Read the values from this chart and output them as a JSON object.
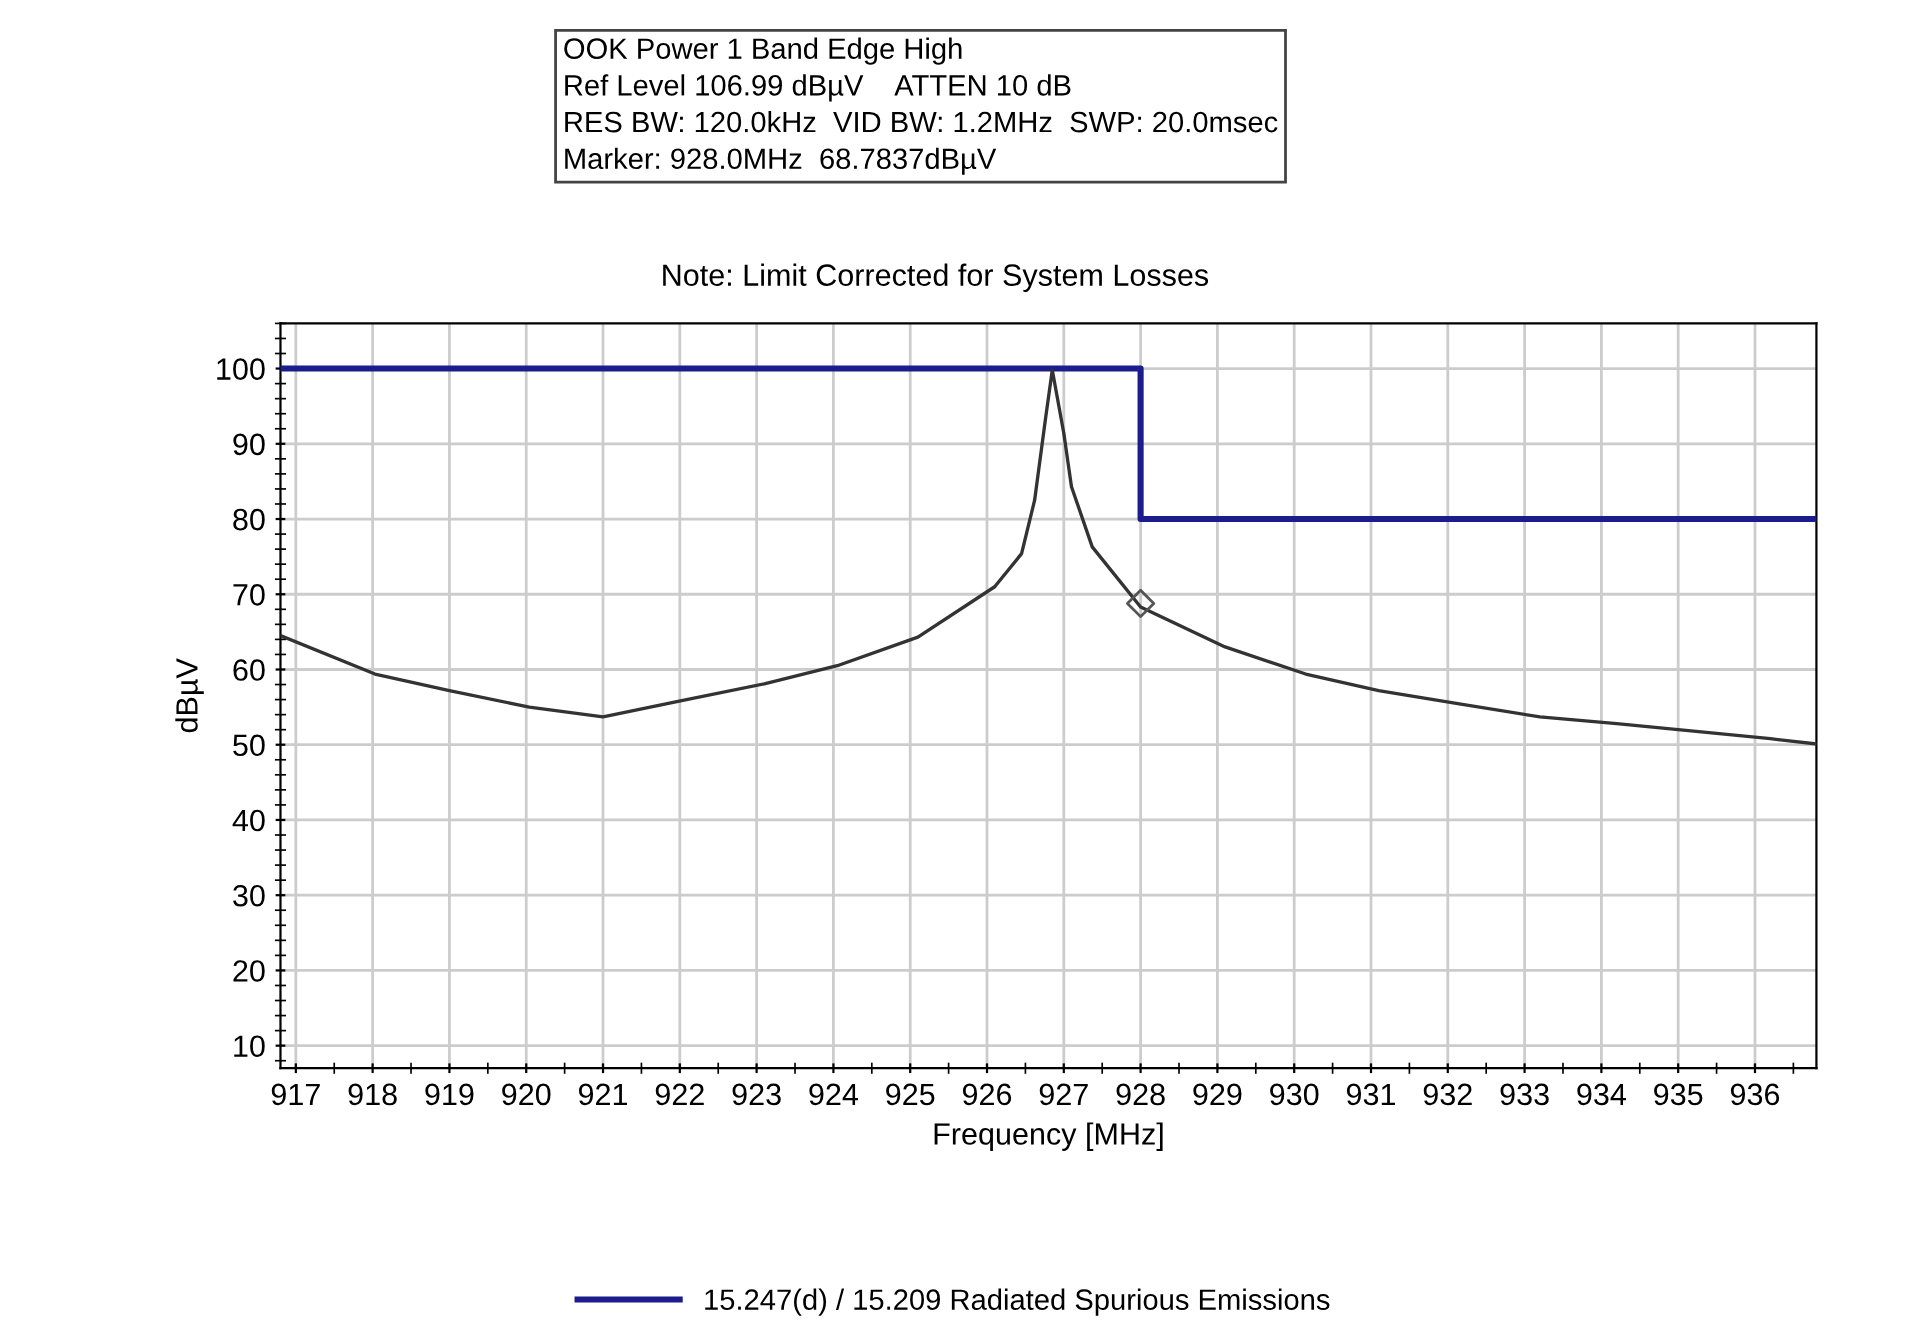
{
  "chart_data": {
    "type": "line",
    "title": "OOK Power 1 Band Edge High",
    "annotations": [
      "Ref Level 106.99 dBµV    ATTEN 10 dB",
      "RES BW: 120.0kHz  VID BW: 1.2MHz  SWP: 20.0msec",
      "Marker: 928.0MHz  68.7837dBµV"
    ],
    "subtitle": "Note: Limit Corrected for System Losses",
    "xlabel": "Frequency [MHz]",
    "ylabel": "dBµV",
    "xlim": [
      916.8,
      936.8
    ],
    "ylim": [
      7,
      106
    ],
    "xticks": [
      917,
      918,
      919,
      920,
      921,
      922,
      923,
      924,
      925,
      926,
      927,
      928,
      929,
      930,
      931,
      932,
      933,
      934,
      935,
      936
    ],
    "yticks": [
      10,
      20,
      30,
      40,
      50,
      60,
      70,
      80,
      90,
      100
    ],
    "grid": true,
    "legend": "bottom",
    "series": [
      {
        "name": "15.247(d) / 15.209 Radiated Spurious Emissions",
        "color": "#1c1c8c",
        "x": [
          916.8,
          928.0,
          928.0,
          936.8
        ],
        "values": [
          100,
          100,
          80,
          80
        ],
        "marker": "none"
      },
      {
        "color": "#333333",
        "marker": "none",
        "x": [
          916.8,
          918.03,
          919.0,
          920.04,
          921.0,
          922.04,
          923.1,
          924.05,
          925.1,
          926.1,
          926.45,
          926.62,
          926.76,
          926.85,
          927.0,
          927.1,
          927.37,
          928.0,
          929.1,
          930.15,
          931.1,
          932.17,
          933.2,
          934.2,
          935.1,
          936.2,
          936.8
        ],
        "values": [
          64.5,
          59.4,
          57.2,
          55.0,
          53.7,
          55.9,
          58.1,
          60.5,
          64.3,
          71.0,
          75.4,
          82.5,
          93.2,
          99.8,
          91.4,
          84.3,
          76.3,
          68.3,
          63.0,
          59.4,
          57.2,
          55.4,
          53.7,
          52.8,
          51.9,
          50.8,
          50.1
        ]
      },
      {
        "type": "scatter",
        "color": "#555555",
        "marker": "diamond",
        "x": [
          928.0
        ],
        "values": [
          68.78
        ]
      }
    ]
  }
}
